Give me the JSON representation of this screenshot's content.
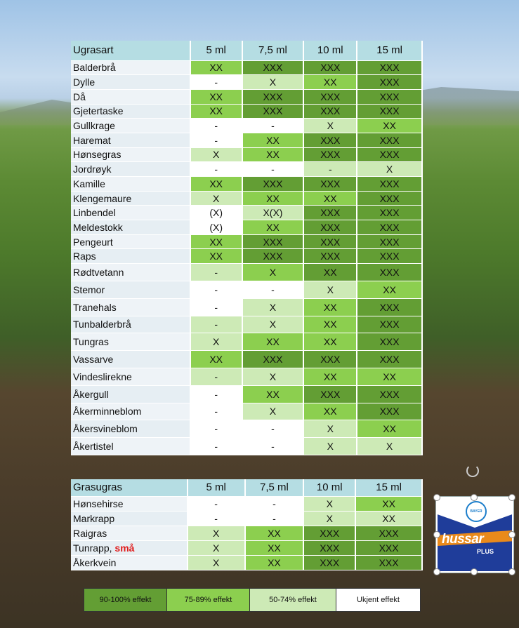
{
  "table1": {
    "header": [
      "Ugrasart",
      "5 ml",
      "7,5 ml",
      "10 ml",
      "15 ml"
    ],
    "rows": [
      {
        "name": "Balderbrå",
        "v": [
          "XX",
          "XXX",
          "XXX",
          "XXX"
        ],
        "c": [
          "g2",
          "g1",
          "g1",
          "g1"
        ]
      },
      {
        "name": "Dylle",
        "v": [
          "-",
          "X",
          "XX",
          "XXX"
        ],
        "c": [
          "g4",
          "g3",
          "g2",
          "g1"
        ]
      },
      {
        "name": "Då",
        "v": [
          "XX",
          "XXX",
          "XXX",
          "XXX"
        ],
        "c": [
          "g2",
          "g1",
          "g1",
          "g1"
        ]
      },
      {
        "name": "Gjetertaske",
        "v": [
          "XX",
          "XXX",
          "XXX",
          "XXX"
        ],
        "c": [
          "g2",
          "g1",
          "g1",
          "g1"
        ]
      },
      {
        "name": "Gullkrage",
        "v": [
          "-",
          "-",
          "X",
          "XX"
        ],
        "c": [
          "g4",
          "g4",
          "g3",
          "g2"
        ]
      },
      {
        "name": "Haremat",
        "v": [
          "-",
          "XX",
          "XXX",
          "XXX"
        ],
        "c": [
          "g4",
          "g2",
          "g1",
          "g1"
        ]
      },
      {
        "name": "Hønsegras",
        "v": [
          "X",
          "XX",
          "XXX",
          "XXX"
        ],
        "c": [
          "g3",
          "g2",
          "g1",
          "g1"
        ]
      },
      {
        "name": "Jordrøyk",
        "v": [
          "-",
          "-",
          "-",
          "X"
        ],
        "c": [
          "g4",
          "g4",
          "g3",
          "g3"
        ]
      },
      {
        "name": "Kamille",
        "v": [
          "XX",
          "XXX",
          "XXX",
          "XXX"
        ],
        "c": [
          "g2",
          "g1",
          "g1",
          "g1"
        ]
      },
      {
        "name": "Klengemaure",
        "v": [
          "X",
          "XX",
          "XX",
          "XXX"
        ],
        "c": [
          "g3",
          "g2",
          "g2",
          "g1"
        ]
      },
      {
        "name": "Linbendel",
        "v": [
          "(X)",
          "X(X)",
          "XXX",
          "XXX"
        ],
        "c": [
          "g4",
          "g3",
          "g1",
          "g1"
        ]
      },
      {
        "name": "Meldestokk",
        "v": [
          "(X)",
          "XX",
          "XXX",
          "XXX"
        ],
        "c": [
          "g4",
          "g2",
          "g1",
          "g1"
        ]
      },
      {
        "name": "Pengeurt",
        "v": [
          "XX",
          "XXX",
          "XXX",
          "XXX"
        ],
        "c": [
          "g2",
          "g1",
          "g1",
          "g1"
        ]
      },
      {
        "name": "Raps",
        "v": [
          "XX",
          "XXX",
          "XXX",
          "XXX"
        ],
        "c": [
          "g2",
          "g1",
          "g1",
          "g1"
        ]
      },
      {
        "name": "Rødtvetann",
        "v": [
          "-",
          "X",
          "XX",
          "XXX"
        ],
        "c": [
          "g3",
          "g2",
          "g1",
          "g1"
        ]
      },
      {
        "name": "Stemor",
        "v": [
          "-",
          "-",
          "X",
          "XX"
        ],
        "c": [
          "g4",
          "g4",
          "g3",
          "g2"
        ]
      },
      {
        "name": "Tranehals",
        "v": [
          "-",
          "X",
          "XX",
          "XXX"
        ],
        "c": [
          "g4",
          "g3",
          "g2",
          "g1"
        ]
      },
      {
        "name": "Tunbalderbrå",
        "v": [
          "-",
          "X",
          "XX",
          "XXX"
        ],
        "c": [
          "g3",
          "g3",
          "g2",
          "g1"
        ]
      },
      {
        "name": "Tungras",
        "v": [
          "X",
          "XX",
          "XX",
          "XXX"
        ],
        "c": [
          "g3",
          "g2",
          "g2",
          "g1"
        ]
      },
      {
        "name": "Vassarve",
        "v": [
          "XX",
          "XXX",
          "XXX",
          "XXX"
        ],
        "c": [
          "g2",
          "g1",
          "g1",
          "g1"
        ]
      },
      {
        "name": "Vindeslirekne",
        "v": [
          "-",
          "X",
          "XX",
          "XX"
        ],
        "c": [
          "g3",
          "g3",
          "g2",
          "g2"
        ]
      },
      {
        "name": "Åkergull",
        "v": [
          "-",
          "XX",
          "XXX",
          "XXX"
        ],
        "c": [
          "g4",
          "g2",
          "g1",
          "g1"
        ]
      },
      {
        "name": "Åkerminneblom",
        "v": [
          "-",
          "X",
          "XX",
          "XXX"
        ],
        "c": [
          "g4",
          "g3",
          "g2",
          "g1"
        ]
      },
      {
        "name": "Åkersvineblom",
        "v": [
          "-",
          "-",
          "X",
          "XX"
        ],
        "c": [
          "g4",
          "g4",
          "g3",
          "g2"
        ]
      },
      {
        "name": "Åkertistel",
        "v": [
          "-",
          "-",
          "X",
          "X"
        ],
        "c": [
          "g4",
          "g4",
          "g3",
          "g3"
        ]
      }
    ]
  },
  "table2": {
    "header": [
      "Grasugras",
      "5 ml",
      "7,5 ml",
      "10 ml",
      "15 ml"
    ],
    "rows": [
      {
        "name": "Hønsehirse",
        "v": [
          "-",
          "-",
          "X",
          "XX"
        ],
        "c": [
          "g4",
          "g4",
          "g3",
          "g2"
        ]
      },
      {
        "name": "Markrapp",
        "v": [
          "-",
          "-",
          "X",
          "XX"
        ],
        "c": [
          "g4",
          "g4",
          "g3",
          "g3"
        ]
      },
      {
        "name": "Raigras",
        "v": [
          "X",
          "XX",
          "XXX",
          "XXX"
        ],
        "c": [
          "g3",
          "g2",
          "g1",
          "g1"
        ]
      },
      {
        "name": "Tunrapp, ",
        "name_red": "små",
        "v": [
          "X",
          "XX",
          "XXX",
          "XXX"
        ],
        "c": [
          "g3",
          "g2",
          "g1",
          "g1"
        ]
      },
      {
        "name": "Åkerkvein",
        "v": [
          "X",
          "XX",
          "XXX",
          "XXX"
        ],
        "c": [
          "g3",
          "g2",
          "g1",
          "g1"
        ]
      }
    ]
  },
  "legend": [
    {
      "label": "90-100% effekt",
      "color": "#639e34"
    },
    {
      "label": "75-89% effekt",
      "color": "#8ccf4f"
    },
    {
      "label": "50-74% effekt",
      "color": "#cdeab6"
    },
    {
      "label": "Ukjent effekt",
      "color": "#ffffff"
    }
  ],
  "logo": {
    "company": "BAYER",
    "brand": "hussar",
    "suffix": "PLUS"
  }
}
